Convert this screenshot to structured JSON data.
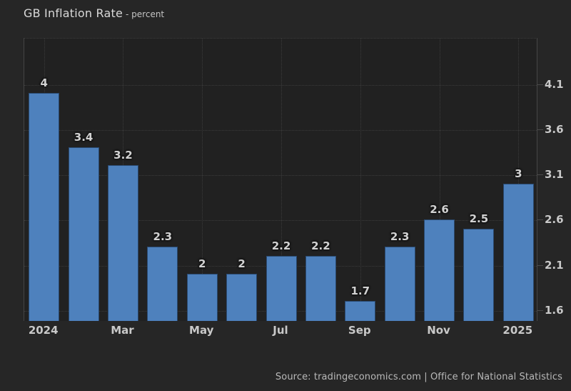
{
  "page": {
    "background": "#262626",
    "plot_background": "#212121"
  },
  "header": {
    "title": "GB Inflation Rate",
    "subtitle": "- percent"
  },
  "footer": {
    "source": "Source: tradingeconomics.com | Office for National Statistics"
  },
  "chart_data": {
    "type": "bar",
    "title": "GB Inflation Rate",
    "subtitle": "- percent",
    "unit": "percent",
    "values": [
      4,
      3.4,
      3.2,
      2.3,
      2,
      2,
      2.2,
      2.2,
      1.7,
      2.3,
      2.6,
      2.5,
      3
    ],
    "data_labels": [
      "4",
      "3.4",
      "3.2",
      "2.3",
      "2",
      "2",
      "2.2",
      "2.2",
      "1.7",
      "2.3",
      "2.6",
      "2.5",
      "3"
    ],
    "x_tick_labels": [
      "2024",
      "Mar",
      "May",
      "Jul",
      "Sep",
      "Nov",
      "2025"
    ],
    "x_tick_indices": [
      0,
      2,
      4,
      6,
      8,
      10,
      12
    ],
    "y_ticks": [
      "4.1",
      "3.6",
      "3.1",
      "2.6",
      "2.1",
      "1.6"
    ],
    "ylim": [
      1.48,
      4.61
    ],
    "y_axis_side": "right",
    "grid": true,
    "legend_position": "none",
    "bar_color": "#4e81bd",
    "source": "Source: tradingeconomics.com | Office for National Statistics"
  }
}
